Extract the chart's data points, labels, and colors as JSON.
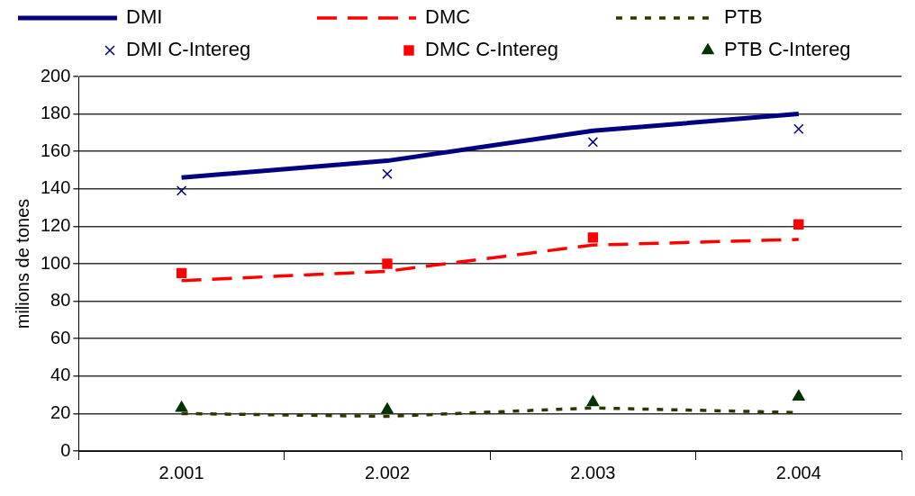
{
  "chart_data": {
    "type": "line",
    "ylabel": "milions de tones",
    "categories": [
      "2.001",
      "2.002",
      "2.003",
      "2.004"
    ],
    "series": [
      {
        "name": "DMI",
        "type": "line",
        "color": "#000080",
        "line_style": "solid",
        "marker": "none",
        "values": [
          146,
          155,
          171,
          180
        ]
      },
      {
        "name": "DMC",
        "type": "line",
        "color": "#ff0000",
        "line_style": "dashed",
        "marker": "none",
        "values": [
          91,
          96,
          110,
          113
        ]
      },
      {
        "name": "PTB",
        "type": "line",
        "color": "#333300",
        "line_style": "dotted",
        "marker": "none",
        "values": [
          20,
          18.5,
          23,
          20.5
        ]
      },
      {
        "name": "DMI C-Intereg",
        "type": "scatter",
        "color": "#000080",
        "marker": "cross",
        "values": [
          139,
          148,
          165,
          172
        ]
      },
      {
        "name": "DMC C-Intereg",
        "type": "scatter",
        "color": "#ff0000",
        "marker": "square",
        "values": [
          95,
          100,
          114,
          121
        ]
      },
      {
        "name": "PTB C-Intereg",
        "type": "scatter",
        "color": "#003300",
        "marker": "triangle",
        "values": [
          23,
          22,
          26,
          29
        ]
      }
    ],
    "ylim": [
      0,
      200
    ],
    "yticks": [
      0,
      20,
      40,
      60,
      80,
      100,
      120,
      140,
      160,
      180,
      200
    ],
    "grid": "y",
    "legend": "top"
  }
}
